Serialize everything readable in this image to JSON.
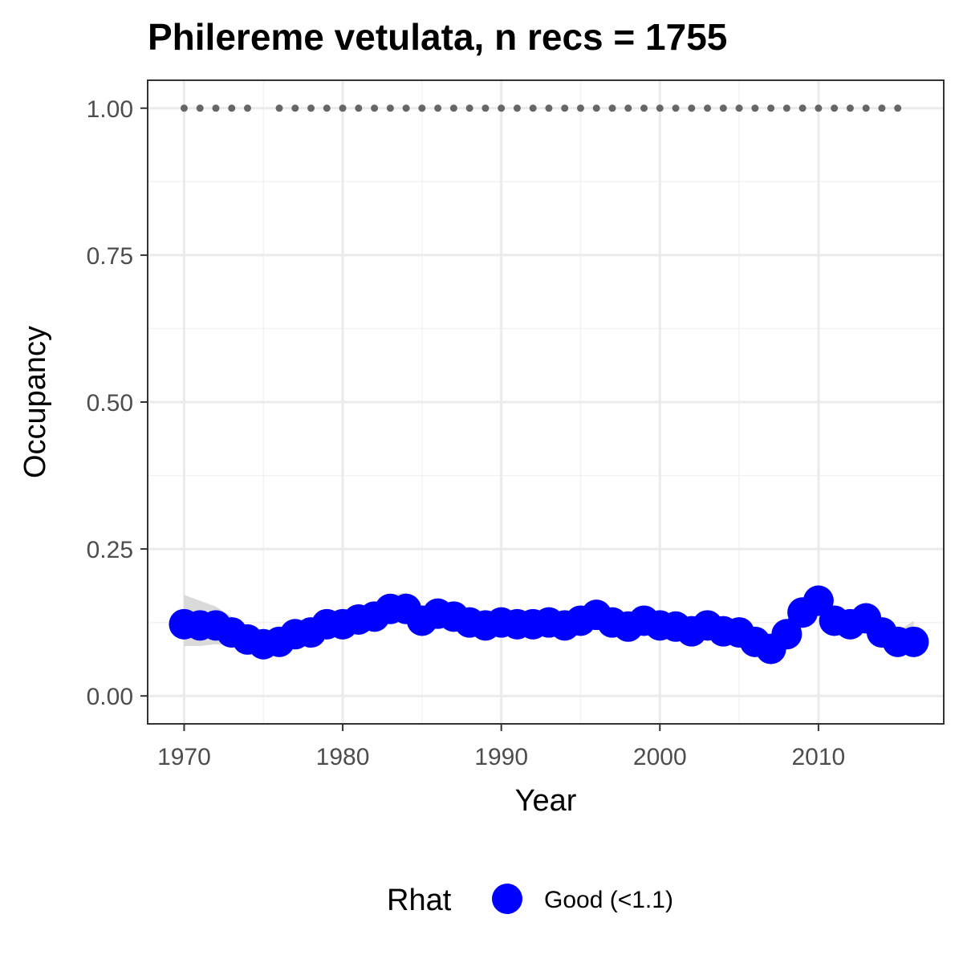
{
  "chart_data": {
    "type": "line",
    "title": "Philereme vetulata, n recs = 1755",
    "xlabel": "Year",
    "ylabel": "Occupancy",
    "xlim": [
      1967.7,
      2017.9
    ],
    "ylim": [
      -0.0475,
      1.0475
    ],
    "x_ticks": [
      1970,
      1980,
      1990,
      2000,
      2010
    ],
    "x_tick_labels": [
      "1970",
      "1980",
      "1990",
      "2000",
      "2010"
    ],
    "y_ticks": [
      0,
      0.25,
      0.5,
      0.75,
      1.0
    ],
    "y_tick_labels": [
      "0.00",
      "0.25",
      "0.50",
      "0.75",
      "1.00"
    ],
    "grid": true,
    "legend_position": "bottom",
    "legend": {
      "title": "Rhat",
      "items": [
        {
          "label": "Good (<1.1)",
          "color": "#0000ff"
        }
      ]
    },
    "colors": {
      "series": "#0000ff",
      "ribbon": "#d3d3d3",
      "records": "#666666"
    },
    "series": [
      {
        "x": [
          1970,
          1971,
          1972,
          1973,
          1974,
          1975,
          1976,
          1977,
          1978,
          1979,
          1980,
          1981,
          1982,
          1983,
          1984,
          1985,
          1986,
          1987,
          1988,
          1989,
          1990,
          1991,
          1992,
          1993,
          1994,
          1995,
          1996,
          1997,
          1998,
          1999,
          2000,
          2001,
          2002,
          2003,
          2004,
          2005,
          2006,
          2007,
          2008,
          2009,
          2010,
          2011,
          2012,
          2013,
          2014,
          2015,
          2016
        ],
        "values": [
          0.122,
          0.12,
          0.12,
          0.108,
          0.096,
          0.088,
          0.092,
          0.105,
          0.108,
          0.122,
          0.122,
          0.13,
          0.135,
          0.148,
          0.148,
          0.128,
          0.14,
          0.135,
          0.125,
          0.12,
          0.125,
          0.122,
          0.122,
          0.125,
          0.12,
          0.128,
          0.138,
          0.125,
          0.118,
          0.128,
          0.12,
          0.118,
          0.11,
          0.12,
          0.11,
          0.108,
          0.092,
          0.08,
          0.105,
          0.142,
          0.162,
          0.128,
          0.122,
          0.132,
          0.108,
          0.092,
          0.092
        ],
        "lower": [
          0.085,
          0.085,
          0.088,
          0.085,
          0.078,
          0.072,
          0.075,
          0.085,
          0.09,
          0.1,
          0.102,
          0.11,
          0.116,
          0.126,
          0.128,
          0.112,
          0.12,
          0.118,
          0.108,
          0.104,
          0.108,
          0.105,
          0.105,
          0.108,
          0.103,
          0.11,
          0.118,
          0.108,
          0.101,
          0.11,
          0.103,
          0.1,
          0.093,
          0.102,
          0.093,
          0.09,
          0.076,
          0.066,
          0.088,
          0.12,
          0.138,
          0.11,
          0.105,
          0.113,
          0.092,
          0.076,
          0.075
        ],
        "upper": [
          0.172,
          0.162,
          0.152,
          0.135,
          0.118,
          0.108,
          0.112,
          0.125,
          0.128,
          0.14,
          0.146,
          0.152,
          0.158,
          0.172,
          0.176,
          0.148,
          0.162,
          0.156,
          0.146,
          0.14,
          0.146,
          0.142,
          0.142,
          0.146,
          0.14,
          0.148,
          0.16,
          0.145,
          0.138,
          0.148,
          0.14,
          0.138,
          0.13,
          0.14,
          0.13,
          0.128,
          0.11,
          0.098,
          0.124,
          0.165,
          0.188,
          0.148,
          0.142,
          0.152,
          0.126,
          0.11,
          0.128
        ]
      }
    ],
    "record_years": [
      1970,
      1971,
      1972,
      1973,
      1974,
      1976,
      1977,
      1978,
      1979,
      1980,
      1981,
      1982,
      1983,
      1984,
      1985,
      1986,
      1987,
      1988,
      1989,
      1990,
      1991,
      1992,
      1993,
      1994,
      1995,
      1996,
      1997,
      1998,
      1999,
      2000,
      2001,
      2002,
      2003,
      2004,
      2005,
      2006,
      2007,
      2008,
      2009,
      2010,
      2011,
      2012,
      2013,
      2014,
      2015
    ],
    "record_value": 1.0
  }
}
